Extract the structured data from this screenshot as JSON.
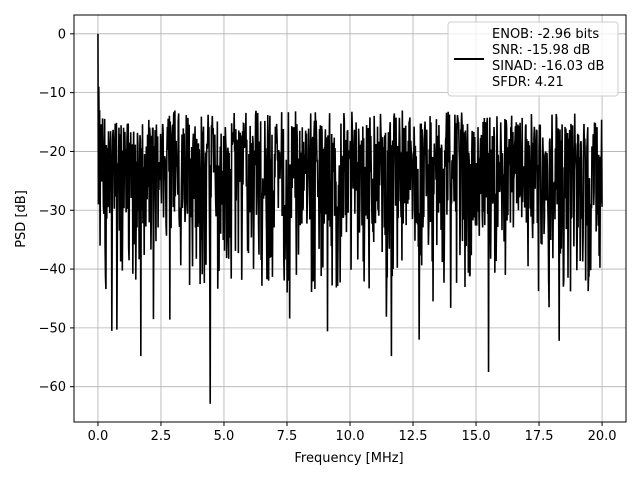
{
  "chart_data": {
    "type": "line",
    "xlabel": "Frequency [MHz]",
    "ylabel": "PSD [dB]",
    "xlim": [
      -0.95,
      20.95
    ],
    "ylim": [
      -66.0,
      3.2
    ],
    "grid": true,
    "legend_position": "top-right",
    "xticks": [
      0.0,
      2.5,
      5.0,
      7.5,
      10.0,
      12.5,
      15.0,
      17.5,
      20.0
    ],
    "xtick_labels": [
      "0.0",
      "2.5",
      "5.0",
      "7.5",
      "10.0",
      "12.5",
      "15.0",
      "17.5",
      "20.0"
    ],
    "yticks": [
      0,
      -10,
      -20,
      -30,
      -40,
      -50,
      -60
    ],
    "ytick_labels": [
      "0",
      "−10",
      "−20",
      "−30",
      "−40",
      "−50",
      "−60"
    ],
    "series": [
      {
        "name": "ENOB: -2.96 bits\nSNR: -15.98 dB\nSINAD: -16.03 dB\nSFDR: 4.21",
        "color": "#000000",
        "x_range": [
          0.0,
          20.0
        ],
        "num_points": 1200,
        "peak": {
          "x": 0.0,
          "y": 0.0
        },
        "noise_floor_mean": -24.0,
        "noise_upper_envelope": -13.0,
        "deep_nulls": [
          {
            "x": 0.55,
            "y": -50.5
          },
          {
            "x": 0.75,
            "y": -50.3
          },
          {
            "x": 1.7,
            "y": -54.8
          },
          {
            "x": 2.2,
            "y": -48.5
          },
          {
            "x": 2.85,
            "y": -48.6
          },
          {
            "x": 4.45,
            "y": -62.9
          },
          {
            "x": 7.6,
            "y": -48.4
          },
          {
            "x": 9.1,
            "y": -50.6
          },
          {
            "x": 11.45,
            "y": -48.1
          },
          {
            "x": 11.65,
            "y": -54.8
          },
          {
            "x": 12.75,
            "y": -52.0
          },
          {
            "x": 15.5,
            "y": -57.5
          },
          {
            "x": 18.3,
            "y": -52.2
          },
          {
            "x": 14.0,
            "y": -46.6
          },
          {
            "x": 17.9,
            "y": -46.5
          },
          {
            "x": 13.3,
            "y": -45.5
          }
        ]
      }
    ]
  },
  "legend": {
    "line1": "ENOB: -2.96 bits",
    "line2": "SNR: -15.98 dB",
    "line3": "SINAD: -16.03 dB",
    "line4": "SFDR: 4.21"
  }
}
